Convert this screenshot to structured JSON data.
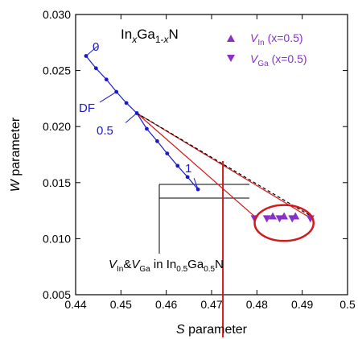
{
  "chart_data": {
    "type": "scatter",
    "xlabel_var": "S",
    "xlabel_rest": " parameter",
    "ylabel_var": "W",
    "ylabel_rest": " parameter",
    "xlim": [
      0.44,
      0.5
    ],
    "ylim": [
      0.005,
      0.03
    ],
    "xticks": [
      0.44,
      0.45,
      0.46,
      0.47,
      0.48,
      0.49,
      0.5
    ],
    "xtick_labels": [
      "0.44",
      "0.45",
      "0.46",
      "0.47",
      "0.48",
      "0.49",
      "0.5"
    ],
    "yticks": [
      0.005,
      0.01,
      0.015,
      0.02,
      0.025,
      0.03
    ],
    "ytick_labels": [
      "0.005",
      "0.010",
      "0.015",
      "0.020",
      "0.025",
      "0.030"
    ],
    "compound": {
      "a": "In",
      "b": "x",
      "c": "Ga",
      "d": "1-",
      "e": "x",
      "f": "N"
    },
    "defect_free_line": {
      "color": "#1a1ac8",
      "x": [
        0.4423,
        0.4445,
        0.4468,
        0.449,
        0.4512,
        0.4535,
        0.4557,
        0.458,
        0.4602,
        0.4625,
        0.4647,
        0.467
      ],
      "y": [
        0.0263,
        0.0252,
        0.0242,
        0.0231,
        0.0221,
        0.0212,
        0.0198,
        0.0187,
        0.0176,
        0.0165,
        0.0155,
        0.0144
      ]
    },
    "annotations": {
      "x0": "0",
      "x05": "0.5",
      "x1": "1",
      "df": "DF"
    },
    "series": [
      {
        "name_var": "V",
        "name_sub": "In",
        "name_rest": " (x=0.5)",
        "marker": "triangle-up",
        "color": "#8b2fc9",
        "x": [
          0.4835,
          0.486,
          0.4885
        ],
        "y": [
          0.012,
          0.012,
          0.012
        ]
      },
      {
        "name_var": "V",
        "name_sub": "Ga",
        "name_rest": " (x=0.5)",
        "marker": "triangle-down",
        "color": "#8b2fc9",
        "x": [
          0.4795,
          0.4822,
          0.485,
          0.4878,
          0.4918
        ],
        "y": [
          0.0118,
          0.0118,
          0.0118,
          0.0118,
          0.0118
        ]
      }
    ],
    "fan_lines": {
      "start": [
        0.4535,
        0.0212
      ],
      "red_ends": [
        [
          0.492,
          0.0118
        ],
        [
          0.48,
          0.0118
        ]
      ],
      "dash_end": [
        0.492,
        0.012
      ],
      "color": "#d11a1a"
    },
    "highlight_ellipse": {
      "cx": 0.486,
      "cy": 0.0114,
      "rx": 0.0065,
      "ry": 0.0016,
      "color": "#d11a1a"
    },
    "red_vline_x": 0.4725,
    "inset_label": {
      "v1": "V",
      "s1": "In",
      "amp": "&",
      "v2": "V",
      "s2": "Ga",
      "in_word": " in In",
      "s3": "0.5",
      "ga": "Ga",
      "s4": "0.5",
      "n": "N"
    },
    "grid": false,
    "legend_position": "top-right"
  }
}
